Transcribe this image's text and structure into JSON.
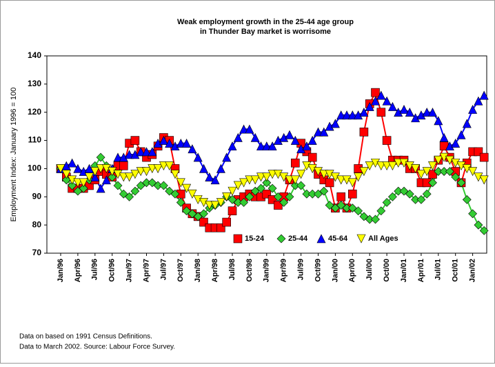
{
  "chart_data": {
    "type": "line",
    "title": [
      "Weak employment growth in the 25-44 age group",
      "in Thunder Bay market is worrisome"
    ],
    "y_label": "Employment Index: January 1996 = 100",
    "notes": [
      "Data on based on 1991 Census Definitions.",
      "Data to March 2002. Source: Labour Force Survey."
    ],
    "categories": [
      "Jan/96",
      null,
      null,
      "Apr/96",
      null,
      null,
      "Jul/96",
      null,
      null,
      "Oct/96",
      null,
      null,
      "Jan/97",
      null,
      null,
      "Apr/97",
      null,
      null,
      "Jul/97",
      null,
      null,
      "Oct/97",
      null,
      null,
      "Jan/98",
      null,
      null,
      "Apr/98",
      null,
      null,
      "Jul/98",
      null,
      null,
      "Oct/98",
      null,
      null,
      "Jan/99",
      null,
      null,
      "Apr/99",
      null,
      null,
      "Jul/99",
      null,
      null,
      "Oct/99",
      null,
      null,
      "Jan/00",
      null,
      null,
      "Apr/00",
      null,
      null,
      "Jul/00",
      null,
      null,
      "Oct/00",
      null,
      null,
      "Jan/01",
      null,
      null,
      "Apr/01",
      null,
      null,
      "Jul/01",
      null,
      null,
      "Oct/01",
      null,
      null,
      "Jan/02",
      null,
      null
    ],
    "series": [
      {
        "name": "15-24",
        "color": "#ff0000",
        "marker": "square",
        "values": [
          100,
          97,
          93,
          93,
          93,
          94,
          96,
          99,
          98,
          97,
          101,
          101,
          109,
          110,
          106,
          104,
          105,
          108,
          111,
          110,
          100,
          91,
          86,
          84,
          83,
          81,
          79,
          79,
          79,
          81,
          85,
          89,
          90,
          91,
          90,
          90,
          91,
          89,
          87,
          90,
          96,
          102,
          109,
          106,
          104,
          98,
          96,
          95,
          86,
          90,
          86,
          91,
          100,
          113,
          123,
          127,
          120,
          110,
          103,
          103,
          103,
          100,
          100,
          95,
          95,
          98,
          103,
          108,
          104,
          99,
          95,
          102,
          106,
          106,
          104
        ]
      },
      {
        "name": "25-44",
        "color": "#33cc33",
        "marker": "diamond",
        "values": [
          100,
          96,
          94,
          92,
          93,
          96,
          101,
          104,
          101,
          97,
          94,
          91,
          90,
          92,
          94,
          95,
          95,
          94,
          94,
          92,
          91,
          88,
          85,
          84,
          83,
          84,
          86,
          87,
          88,
          90,
          89,
          88,
          88,
          90,
          92,
          93,
          95,
          93,
          90,
          88,
          90,
          94,
          94,
          91,
          91,
          91,
          92,
          87,
          86,
          87,
          86,
          86,
          85,
          83,
          82,
          82,
          85,
          88,
          90,
          92,
          92,
          91,
          89,
          89,
          91,
          95,
          99,
          99,
          99,
          97,
          95,
          89,
          84,
          80,
          78
        ]
      },
      {
        "name": "45-64",
        "color": "#0000ff",
        "marker": "triangle-up",
        "values": [
          100,
          101,
          102,
          100,
          99,
          100,
          97,
          93,
          96,
          100,
          104,
          104,
          105,
          105,
          106,
          106,
          106,
          109,
          110,
          109,
          108,
          109,
          109,
          107,
          104,
          100,
          97,
          96,
          100,
          104,
          108,
          111,
          114,
          114,
          111,
          108,
          108,
          108,
          110,
          111,
          112,
          110,
          107,
          108,
          110,
          113,
          113,
          115,
          116,
          119,
          119,
          119,
          119,
          120,
          122,
          124,
          126,
          124,
          122,
          120,
          121,
          120,
          118,
          119,
          120,
          120,
          117,
          111,
          108,
          109,
          112,
          116,
          121,
          124,
          126
        ]
      },
      {
        "name": "All Ages",
        "color": "#ffff00",
        "marker": "triangle-down",
        "values": [
          100,
          98,
          96,
          95,
          95,
          97,
          99,
          100,
          100,
          99,
          98,
          97,
          97,
          98,
          99,
          99,
          100,
          100,
          101,
          101,
          98,
          95,
          93,
          91,
          89,
          88,
          87,
          87,
          88,
          90,
          92,
          94,
          95,
          96,
          96,
          97,
          97,
          98,
          98,
          97,
          96,
          96,
          98,
          101,
          100,
          99,
          98,
          98,
          97,
          96,
          96,
          95,
          97,
          99,
          101,
          102,
          101,
          101,
          101,
          102,
          102,
          101,
          100,
          98,
          99,
          101,
          103,
          104,
          103,
          102,
          101,
          100,
          99,
          97,
          96
        ]
      }
    ],
    "ylim": [
      70,
      140
    ],
    "yticks": [
      70,
      80,
      90,
      100,
      110,
      120,
      130,
      140
    ],
    "grid": false,
    "legend": "bottom"
  }
}
